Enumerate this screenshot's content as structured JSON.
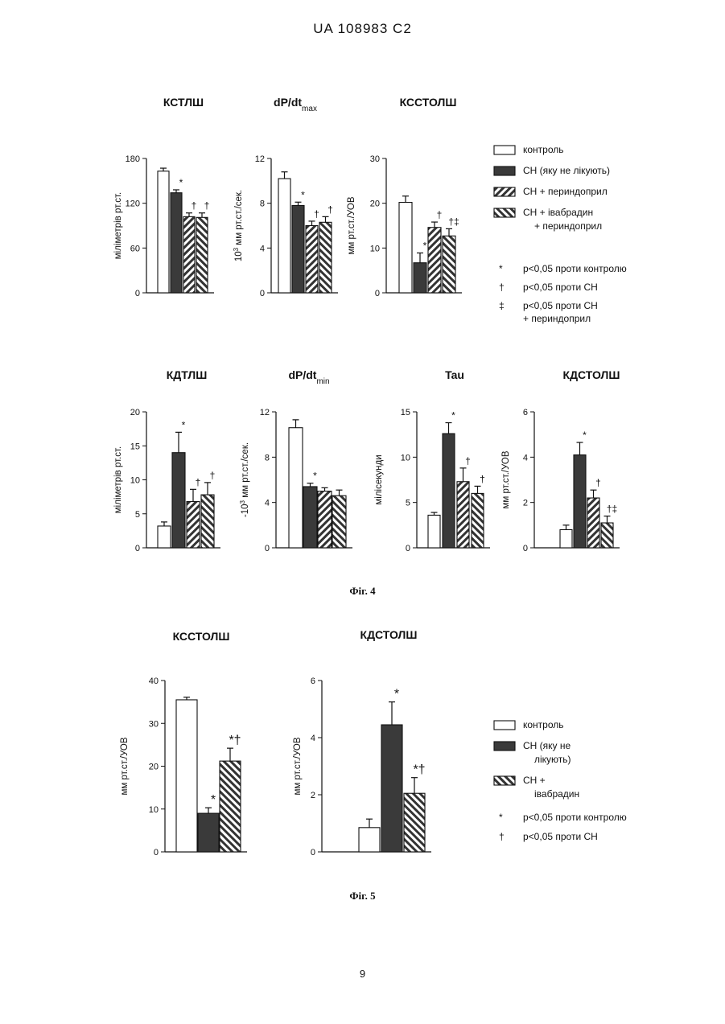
{
  "page": {
    "header": "UA   108983   C2",
    "page_number": "9"
  },
  "fig4": {
    "caption": "Фіг. 4",
    "legend": {
      "items": [
        {
          "label": "контроль",
          "style": "white"
        },
        {
          "label": "СН (яку не лікують)",
          "style": "dark"
        },
        {
          "label": "СН + периндоприл",
          "style": "hatch"
        },
        {
          "label": "СН + івабрадин",
          "label2": "+ периндоприл",
          "style": "hatch2"
        }
      ],
      "notes": [
        {
          "mark": "*",
          "text": "p<0,05 проти контролю"
        },
        {
          "mark": "†",
          "text": "p<0,05 проти СН"
        },
        {
          "mark": "‡",
          "text": "p<0,05 проти СН",
          "text2": "+ периндоприл"
        }
      ]
    }
  },
  "fig5": {
    "caption": "Фіг. 5",
    "legend": {
      "items": [
        {
          "label": "контроль",
          "style": "white"
        },
        {
          "label": "СН (яку не",
          "label2": "лікують)",
          "style": "dark"
        },
        {
          "label": "СН +",
          "label2": "івабрадин",
          "style": "hatch2"
        }
      ],
      "notes": [
        {
          "mark": "*",
          "text": "p<0,05 проти контролю"
        },
        {
          "mark": "†",
          "text": "p<0,05 проти СН"
        }
      ]
    }
  },
  "chart_data": [
    {
      "type": "bar",
      "id": "kstlsh",
      "title": "КСТЛШ",
      "ylabel": "міліметрів рт.ст.",
      "ylim": [
        0,
        180
      ],
      "yticks": [
        "0",
        "60",
        "120",
        "180"
      ],
      "series": [
        {
          "name": "контроль",
          "value": 163,
          "error": 4,
          "annot": ""
        },
        {
          "name": "СН (яку не лікують)",
          "value": 134,
          "error": 4,
          "annot": "*"
        },
        {
          "name": "СН + периндоприл",
          "value": 102,
          "error": 5,
          "annot": "†"
        },
        {
          "name": "СН + івабрадин + периндоприл",
          "value": 101,
          "error": 6,
          "annot": "†"
        }
      ]
    },
    {
      "type": "bar",
      "id": "dpdtmax",
      "title": "dP/dt",
      "title_sub": "max",
      "ylabel": "мм рт.ст./сек.",
      "ylabel_prefix": "10",
      "ylabel_sup": "3",
      "ylim": [
        0,
        12
      ],
      "yticks": [
        "0",
        "4",
        "8",
        "12"
      ],
      "series": [
        {
          "name": "контроль",
          "value": 10.2,
          "error": 0.6,
          "annot": ""
        },
        {
          "name": "СН (яку не лікують)",
          "value": 7.8,
          "error": 0.3,
          "annot": "*"
        },
        {
          "name": "СН + периндоприл",
          "value": 6.0,
          "error": 0.4,
          "annot": "†"
        },
        {
          "name": "СН + івабрадин + периндоприл",
          "value": 6.3,
          "error": 0.5,
          "annot": "†"
        }
      ]
    },
    {
      "type": "bar",
      "id": "ksstolsh",
      "title": "КССТОЛШ",
      "ylabel": "мм рт.ст./УОВ",
      "ylim": [
        0,
        30
      ],
      "yticks": [
        "0",
        "10",
        "20",
        "30"
      ],
      "series": [
        {
          "name": "контроль",
          "value": 20.2,
          "error": 1.4,
          "annot": ""
        },
        {
          "name": "СН (яку не лікують)",
          "value": 6.7,
          "error": 2.2,
          "annot": "*"
        },
        {
          "name": "СН + периндоприл",
          "value": 14.6,
          "error": 1.2,
          "annot": "†"
        },
        {
          "name": "СН + івабрадин + периндоприл",
          "value": 12.7,
          "error": 1.6,
          "annot": "†‡"
        }
      ]
    },
    {
      "type": "bar",
      "id": "kdtlsh",
      "title": "КДТЛШ",
      "ylabel": "міліметрів рт.ст.",
      "ylim": [
        0,
        20
      ],
      "yticks": [
        "0",
        "5",
        "10",
        "15",
        "20"
      ],
      "series": [
        {
          "name": "контроль",
          "value": 3.2,
          "error": 0.6,
          "annot": ""
        },
        {
          "name": "СН (яку не лікують)",
          "value": 14.0,
          "error": 3.0,
          "annot": "*"
        },
        {
          "name": "СН + периндоприл",
          "value": 6.8,
          "error": 1.8,
          "annot": "†"
        },
        {
          "name": "СН + івабрадин + периндоприл",
          "value": 7.8,
          "error": 1.8,
          "annot": "†"
        }
      ]
    },
    {
      "type": "bar",
      "id": "dpdtmin",
      "title": "dP/dt",
      "title_sub": "min",
      "ylabel": "мм рт.ст./сек.",
      "ylabel_prefix": "-10",
      "ylabel_sup": "3",
      "ylim": [
        0,
        12
      ],
      "yticks": [
        "0",
        "4",
        "8",
        "12"
      ],
      "series": [
        {
          "name": "контроль",
          "value": 10.6,
          "error": 0.7,
          "annot": ""
        },
        {
          "name": "СН (яку не лікують)",
          "value": 5.4,
          "error": 0.3,
          "annot": "*"
        },
        {
          "name": "СН + периндоприл",
          "value": 5.0,
          "error": 0.3,
          "annot": ""
        },
        {
          "name": "СН + івабрадин + периндоприл",
          "value": 4.6,
          "error": 0.5,
          "annot": ""
        }
      ]
    },
    {
      "type": "bar",
      "id": "tau",
      "title": "Tau",
      "ylabel": "мілісекунди",
      "ylim": [
        0,
        15
      ],
      "yticks": [
        "0",
        "5",
        "10",
        "15"
      ],
      "series": [
        {
          "name": "контроль",
          "value": 3.6,
          "error": 0.3,
          "annot": ""
        },
        {
          "name": "СН (яку не лікують)",
          "value": 12.6,
          "error": 1.2,
          "annot": "*"
        },
        {
          "name": "СН + периндоприл",
          "value": 7.3,
          "error": 1.5,
          "annot": "†"
        },
        {
          "name": "СН + івабрадин + периндоприл",
          "value": 6.0,
          "error": 0.8,
          "annot": "†"
        }
      ]
    },
    {
      "type": "bar",
      "id": "kdstolsh4",
      "title": "КДСТОЛШ",
      "ylabel": "мм рт.ст./УОВ",
      "ylim": [
        0,
        6
      ],
      "yticks": [
        "0",
        "2",
        "4",
        "6"
      ],
      "series": [
        {
          "name": "контроль",
          "value": 0.8,
          "error": 0.2,
          "annot": ""
        },
        {
          "name": "СН (яку не лікують)",
          "value": 4.1,
          "error": 0.55,
          "annot": "*"
        },
        {
          "name": "СН + периндоприл",
          "value": 2.2,
          "error": 0.35,
          "annot": "†"
        },
        {
          "name": "СН + івабрадин + периндоприл",
          "value": 1.1,
          "error": 0.3,
          "annot": "†‡"
        }
      ]
    },
    {
      "type": "bar",
      "id": "ksstolsh5",
      "title": "КССТОЛШ",
      "ylabel": "мм рт.ст./УОВ",
      "ylim": [
        0,
        40
      ],
      "yticks": [
        "0",
        "10",
        "20",
        "30",
        "40"
      ],
      "series": [
        {
          "name": "контроль",
          "value": 35.5,
          "error": 0.6,
          "annot": ""
        },
        {
          "name": "СН (яку не лікують)",
          "value": 9.0,
          "error": 1.3,
          "annot": "*"
        },
        {
          "name": "СН + івабрадин",
          "value": 21.2,
          "error": 3.0,
          "annot": "*†"
        }
      ]
    },
    {
      "type": "bar",
      "id": "kdstolsh5",
      "title": "КДСТОЛШ",
      "ylabel": "мм рт.ст./УОВ",
      "ylim": [
        0,
        6
      ],
      "yticks": [
        "0",
        "2",
        "4",
        "6"
      ],
      "series": [
        {
          "name": "контроль",
          "value": 0.85,
          "error": 0.3,
          "annot": ""
        },
        {
          "name": "СН (яку не лікують)",
          "value": 4.45,
          "error": 0.8,
          "annot": "*"
        },
        {
          "name": "СН + івабрадин",
          "value": 2.05,
          "error": 0.55,
          "annot": "*†"
        }
      ]
    }
  ]
}
